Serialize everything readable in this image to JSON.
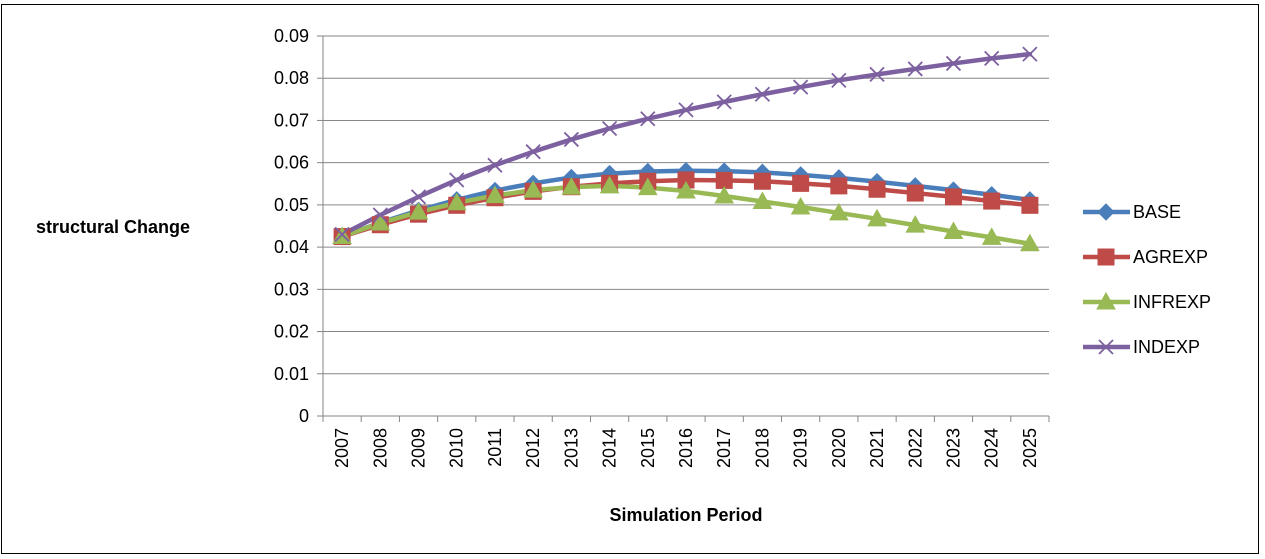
{
  "chart_data": {
    "type": "line",
    "title": "",
    "xlabel": "Simulation Period",
    "ylabel": "structural Change",
    "ylim": [
      0,
      0.09
    ],
    "yticks": [
      "0",
      "0.01",
      "0.02",
      "0.03",
      "0.04",
      "0.05",
      "0.06",
      "0.07",
      "0.08",
      "0.09"
    ],
    "grid": "horizontal",
    "legend": "right",
    "x": [
      "2007",
      "2008",
      "2009",
      "2010",
      "2011",
      "2012",
      "2013",
      "2014",
      "2015",
      "2016",
      "2017",
      "2018",
      "2019",
      "2020",
      "2021",
      "2022",
      "2023",
      "2024",
      "2025"
    ],
    "series": [
      {
        "name": "BASE",
        "color": "#4a7ebb",
        "marker": "diamond",
        "values": [
          0.0425,
          0.0458,
          0.0487,
          0.0512,
          0.0534,
          0.0551,
          0.0565,
          0.0574,
          0.0579,
          0.0581,
          0.058,
          0.0577,
          0.0571,
          0.0564,
          0.0555,
          0.0545,
          0.0535,
          0.0524,
          0.0512
        ]
      },
      {
        "name": "AGREXP",
        "color": "#be4b48",
        "marker": "square",
        "values": [
          0.0425,
          0.0453,
          0.0478,
          0.0499,
          0.0517,
          0.0532,
          0.0543,
          0.0551,
          0.0556,
          0.0559,
          0.0558,
          0.0556,
          0.0551,
          0.0545,
          0.0537,
          0.0528,
          0.0519,
          0.0509,
          0.0499
        ]
      },
      {
        "name": "INFREXP",
        "color": "#98b954",
        "marker": "triangle",
        "values": [
          0.0425,
          0.0457,
          0.0483,
          0.0505,
          0.0522,
          0.0535,
          0.0542,
          0.0545,
          0.0541,
          0.0533,
          0.0521,
          0.0508,
          0.0495,
          0.0481,
          0.0467,
          0.0452,
          0.0437,
          0.0423,
          0.0408
        ]
      },
      {
        "name": "INDEXP",
        "color": "#7d60a0",
        "marker": "x",
        "values": [
          0.043,
          0.0476,
          0.0519,
          0.0559,
          0.0594,
          0.0626,
          0.0655,
          0.0681,
          0.0704,
          0.0725,
          0.0744,
          0.0762,
          0.0779,
          0.0795,
          0.0809,
          0.0822,
          0.0835,
          0.0847,
          0.0857
        ]
      }
    ]
  }
}
